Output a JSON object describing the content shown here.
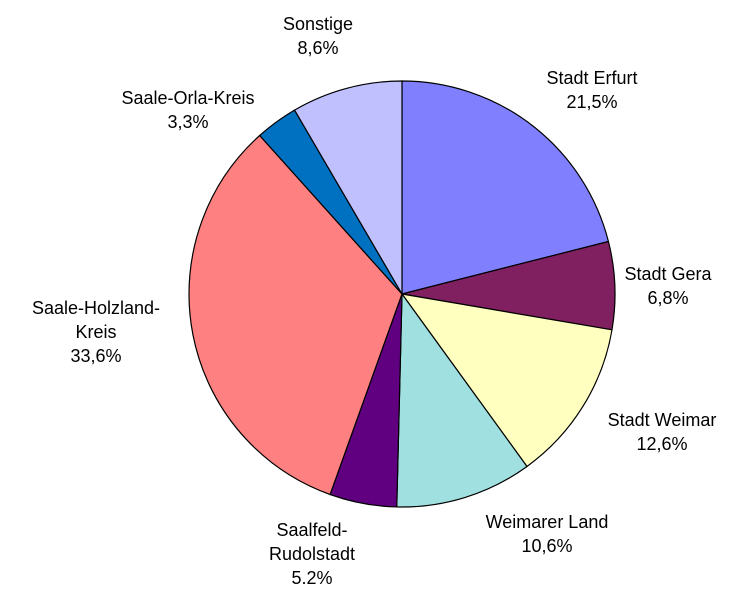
{
  "chart_data": {
    "type": "pie",
    "categories": [
      "Stadt Erfurt",
      "Stadt Gera",
      "Stadt Weimar",
      "Weimarer Land",
      "Saalfeld-Rudolstadt",
      "Saale-Holzland-Kreis",
      "Saale-Orla-Kreis",
      "Sonstige"
    ],
    "values": [
      21.5,
      6.8,
      12.6,
      10.6,
      5.2,
      33.6,
      3.3,
      8.6
    ],
    "value_labels": [
      "21,5%",
      "6,8%",
      "12,6%",
      "10,6%",
      "5.2%",
      "33,6%",
      "3,3%",
      "8,6%"
    ],
    "colors": [
      "#8080ff",
      "#802060",
      "#ffffc0",
      "#a0e0e0",
      "#600080",
      "#ff8080",
      "#0070c0",
      "#c0c0ff"
    ]
  }
}
